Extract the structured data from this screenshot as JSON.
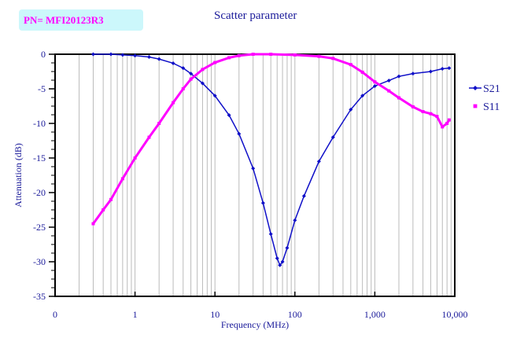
{
  "part_number": "PN= MFI20123R3",
  "chart_data": {
    "type": "scatter",
    "title": "Scatter parameter",
    "xlabel": "Frequency (MHz)",
    "ylabel": "Attenuation (dB)",
    "xscale": "log",
    "xlim": [
      0.1,
      10000
    ],
    "ylim": [
      -35,
      0
    ],
    "xticks": [
      {
        "v": 0.1,
        "label": "0"
      },
      {
        "v": 1,
        "label": "1"
      },
      {
        "v": 10,
        "label": "10"
      },
      {
        "v": 100,
        "label": "100"
      },
      {
        "v": 1000,
        "label": "1,000"
      },
      {
        "v": 10000,
        "label": "10,000"
      }
    ],
    "yticks": [
      0,
      -5,
      -10,
      -15,
      -20,
      -25,
      -30,
      -35
    ],
    "grid": true,
    "legend": "right",
    "series": [
      {
        "name": "S21",
        "color": "#1010c8",
        "marker": "diamond",
        "x": [
          0.3,
          0.5,
          0.7,
          1,
          1.5,
          2,
          3,
          4,
          5,
          7,
          10,
          15,
          20,
          30,
          40,
          50,
          60,
          65,
          70,
          80,
          100,
          130,
          200,
          300,
          500,
          700,
          1000,
          1500,
          2000,
          3000,
          5000,
          7000,
          8500
        ],
        "y": [
          0,
          0,
          -0.1,
          -0.2,
          -0.4,
          -0.7,
          -1.3,
          -2,
          -2.8,
          -4.2,
          -6,
          -8.8,
          -11.5,
          -16.5,
          -21.5,
          -26,
          -29.5,
          -30.5,
          -30,
          -28,
          -24,
          -20.5,
          -15.5,
          -12,
          -8,
          -6,
          -4.6,
          -3.8,
          -3.2,
          -2.8,
          -2.5,
          -2.1,
          -2
        ]
      },
      {
        "name": "S11",
        "color": "#ff00ff",
        "marker": "square",
        "x": [
          0.3,
          0.4,
          0.5,
          0.7,
          1,
          1.5,
          2,
          3,
          4,
          5,
          7,
          10,
          15,
          20,
          30,
          50,
          100,
          200,
          300,
          500,
          700,
          1000,
          1500,
          2000,
          3000,
          4000,
          5000,
          6000,
          7000,
          8000,
          8500
        ],
        "y": [
          -24.5,
          -22.5,
          -21,
          -18,
          -15,
          -12,
          -10,
          -7,
          -5,
          -3.6,
          -2.2,
          -1.2,
          -0.5,
          -0.2,
          0,
          0,
          -0.1,
          -0.3,
          -0.6,
          -1.5,
          -2.6,
          -4,
          -5.3,
          -6.3,
          -7.6,
          -8.3,
          -8.6,
          -9,
          -10.5,
          -10,
          -9.5
        ]
      }
    ]
  }
}
